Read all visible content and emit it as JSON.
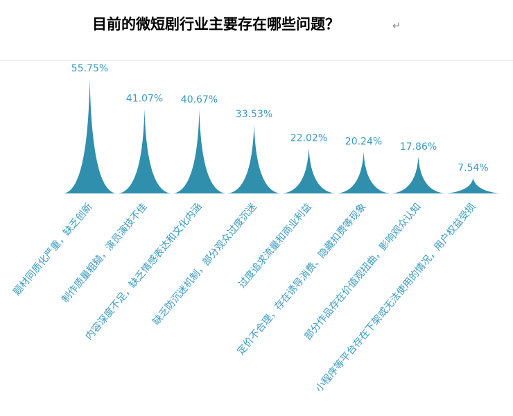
{
  "chart_data": {
    "type": "spike",
    "title": "目前的微短剧行业主要存在哪些问题？",
    "title_mark": "↵",
    "categories": [
      "题材同质化严重，缺乏创新",
      "制作质量粗糙，演员演技不佳",
      "内容深度不足，缺乏情感表达和文化内涵",
      "缺乏防沉迷机制，部分观众过度沉迷",
      "过度追求流量和商业利益",
      "定价不合理，存在诱导消费、隐藏扣费等现象",
      "部分作品存在价值观扭曲，影响观众认知",
      "小程序等平台存在下架或无法使用的情况，用户权益受损"
    ],
    "values": [
      55.75,
      41.07,
      40.67,
      33.53,
      22.02,
      20.24,
      17.86,
      7.54
    ],
    "value_labels": [
      "55.75%",
      "41.07%",
      "40.67%",
      "33.53%",
      "22.02%",
      "20.24%",
      "17.86%",
      "7.54%"
    ],
    "color": "#2f8fad"
  }
}
